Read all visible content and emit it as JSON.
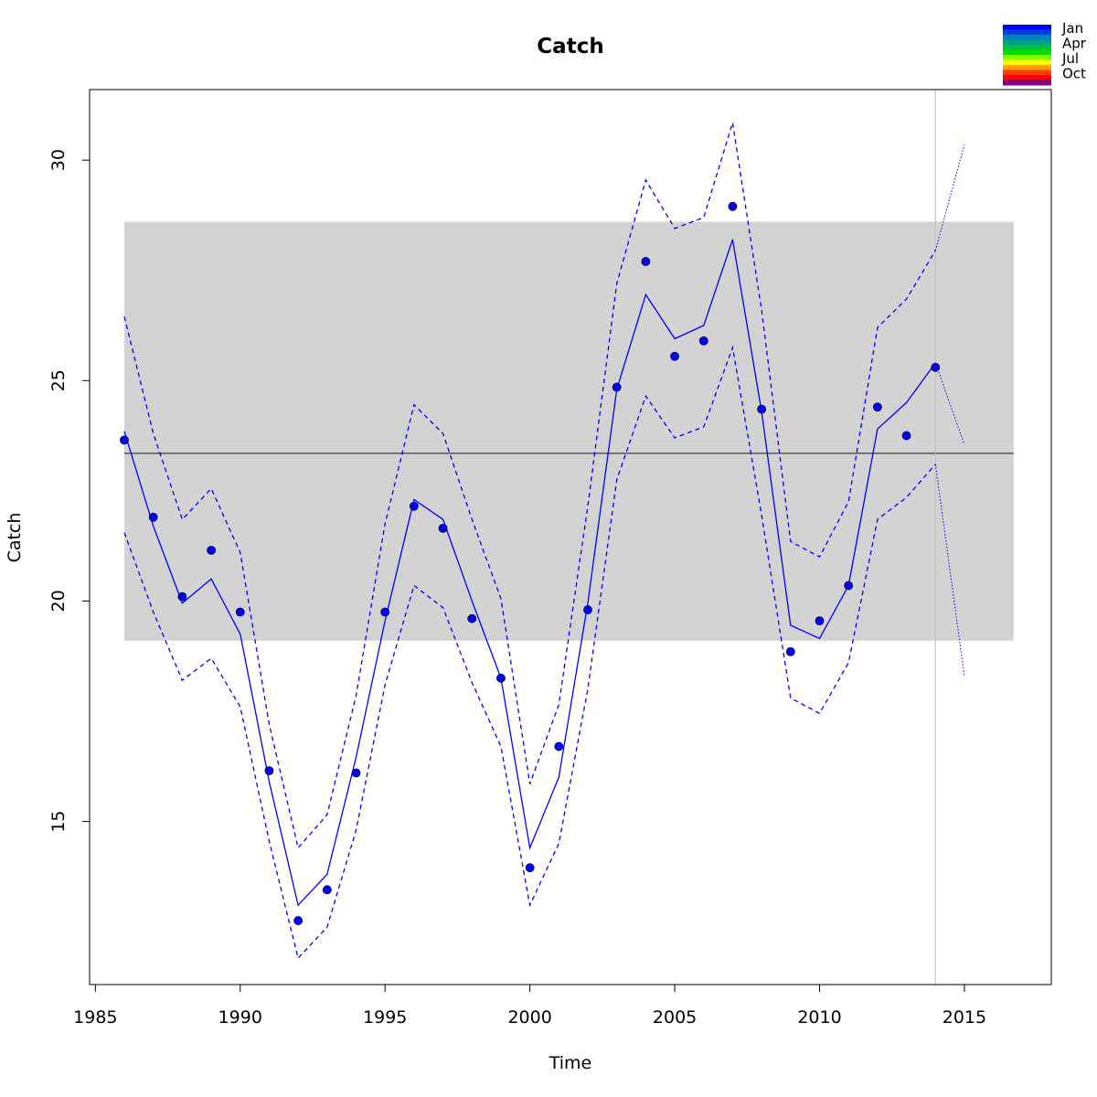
{
  "chart_data": {
    "type": "line",
    "title": "Catch",
    "xlabel": "Time",
    "ylabel": "Catch",
    "xlim": [
      1984.8,
      2018.0
    ],
    "ylim": [
      11.3,
      31.6
    ],
    "x_ticks": [
      1985,
      1990,
      1995,
      2000,
      2005,
      2010,
      2015
    ],
    "y_ticks": [
      15,
      20,
      25,
      30
    ],
    "grid": false,
    "band": {
      "ymin": 19.1,
      "ymax": 28.6,
      "xmin": 1986,
      "xmax": 2016.7,
      "color": "#d3d3d3"
    },
    "mean_line": {
      "value": 23.35,
      "color": "#555555"
    },
    "vline": {
      "x": 2014,
      "color": "#bebebe"
    },
    "x": [
      1986,
      1987,
      1988,
      1989,
      1990,
      1991,
      1992,
      1993,
      1994,
      1995,
      1996,
      1997,
      1998,
      1999,
      2000,
      2001,
      2002,
      2003,
      2004,
      2005,
      2006,
      2007,
      2008,
      2009,
      2010,
      2011,
      2012,
      2013,
      2014
    ],
    "series": [
      {
        "role": "observed",
        "style": "points",
        "color": "#0000ff",
        "values": [
          23.65,
          21.9,
          20.1,
          21.15,
          19.75,
          16.15,
          12.75,
          13.45,
          16.1,
          19.75,
          22.15,
          21.65,
          19.6,
          18.25,
          13.95,
          16.7,
          19.8,
          24.85,
          27.7,
          25.55,
          25.9,
          28.95,
          24.35,
          18.85,
          19.55,
          20.35,
          24.4,
          23.75,
          25.3
        ]
      },
      {
        "role": "fitted",
        "style": "solid",
        "color": "#0000ff",
        "values": [
          23.85,
          21.7,
          19.95,
          20.5,
          19.25,
          15.9,
          13.1,
          13.8,
          16.45,
          19.55,
          22.3,
          21.85,
          20.0,
          18.25,
          14.4,
          16.0,
          19.95,
          24.8,
          26.95,
          25.95,
          26.25,
          28.2,
          24.3,
          19.45,
          19.15,
          20.35,
          23.9,
          24.5,
          25.4
        ]
      },
      {
        "role": "upper_interval",
        "style": "dashed",
        "color": "#0000ff",
        "values": [
          26.45,
          23.8,
          21.85,
          22.55,
          21.1,
          17.2,
          14.4,
          15.15,
          17.85,
          21.75,
          24.45,
          23.8,
          21.85,
          20.05,
          15.85,
          17.65,
          22.15,
          27.2,
          29.55,
          28.45,
          28.7,
          30.85,
          26.6,
          21.35,
          21.0,
          22.25,
          26.2,
          26.85,
          27.95
        ]
      },
      {
        "role": "lower_interval",
        "style": "dashed",
        "color": "#0000ff",
        "values": [
          21.55,
          19.75,
          18.2,
          18.7,
          17.6,
          14.55,
          11.9,
          12.6,
          14.8,
          18.1,
          20.35,
          19.85,
          18.15,
          16.7,
          13.1,
          14.5,
          18.0,
          22.75,
          24.65,
          23.7,
          23.95,
          25.75,
          21.95,
          17.8,
          17.45,
          18.6,
          21.85,
          22.35,
          23.1
        ]
      }
    ],
    "forecast": {
      "x": [
        2014,
        2015
      ],
      "center": [
        25.4,
        23.55
      ],
      "upper": [
        27.95,
        30.35
      ],
      "lower": [
        23.1,
        18.3
      ],
      "style": "dotted",
      "color": "#0000ff"
    },
    "legend": {
      "placement": "top-right",
      "labels": [
        "Jan",
        "Apr",
        "Jul",
        "Oct"
      ],
      "colors": [
        "#0000ff",
        "#0040e0",
        "#0080c0",
        "#00a080",
        "#00c040",
        "#00e000",
        "#80ff00",
        "#ffff00",
        "#ffa000",
        "#ff4000",
        "#ff0000",
        "#800080"
      ]
    }
  }
}
